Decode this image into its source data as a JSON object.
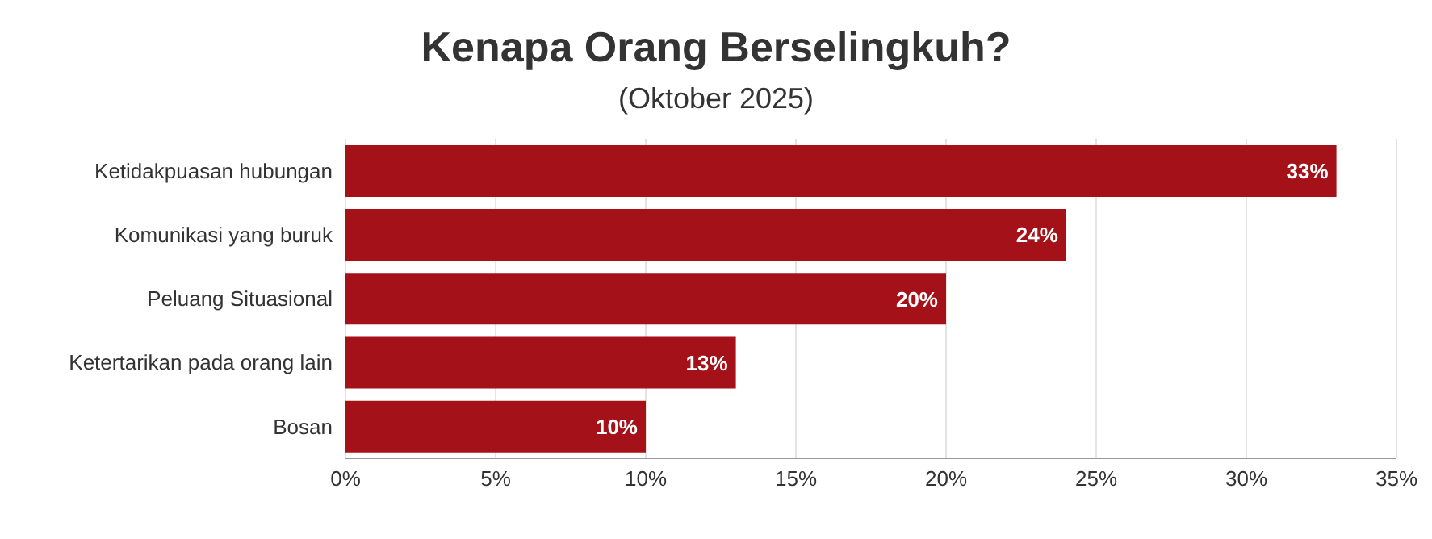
{
  "chart_data": {
    "type": "bar",
    "orientation": "horizontal",
    "title": "Kenapa Orang Berselingkuh?",
    "subtitle": "(Oktober 2025)",
    "categories": [
      "Ketidakpuasan hubungan",
      "Komunikasi yang buruk",
      "Peluang Situasional",
      "Ketertarikan pada orang lain",
      "Bosan"
    ],
    "values": [
      33,
      24,
      20,
      13,
      10
    ],
    "value_labels": [
      "33%",
      "24%",
      "20%",
      "13%",
      "10%"
    ],
    "color": "#a51118",
    "xlim": [
      0,
      35
    ],
    "xticks": [
      {
        "value": 0,
        "label": "0%"
      },
      {
        "value": 5,
        "label": "5%"
      },
      {
        "value": 10,
        "label": "10%"
      },
      {
        "value": 15,
        "label": "15%"
      },
      {
        "value": 20,
        "label": "20%"
      },
      {
        "value": 25,
        "label": "25%"
      },
      {
        "value": 30,
        "label": "30%"
      },
      {
        "value": 35,
        "label": "35%"
      }
    ],
    "grid": "x"
  }
}
